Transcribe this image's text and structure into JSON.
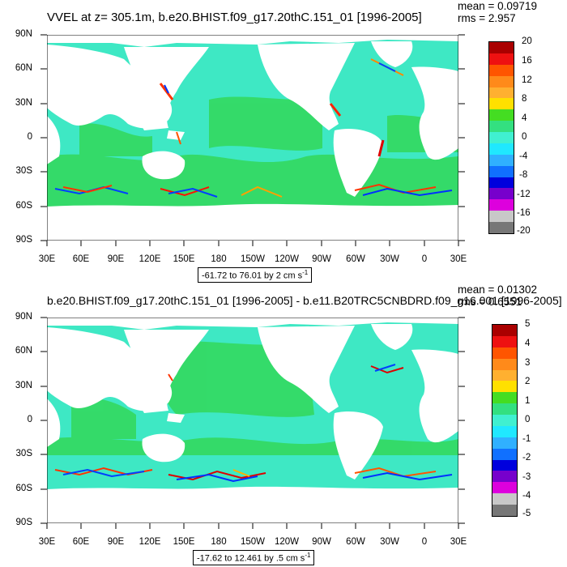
{
  "panels": [
    {
      "title": "VVEL at z= 305.1m, b.e20.BHIST.f09_g17.20thC.151_01 [1996-2005]",
      "mean": "mean = 0.09719",
      "rms": "rms = 2.957",
      "range_label": "-61.72 to 76.01 by 2 cm s",
      "range_sup": "-1",
      "colorbar": [
        "20",
        "16",
        "12",
        "8",
        "4",
        "0",
        "-4",
        "-8",
        "-12",
        "-16",
        "-20"
      ]
    },
    {
      "title": "b.e20.BHIST.f09_g17.20thC.151_01 [1996-2005] - b.e11.B20TRC5CNBDRD.f09_g16.001 [1996-2005]",
      "mean": "mean = 0.01302",
      "rms": "rms = 0.6551",
      "range_label": "-17.62 to 12.461 by .5 cm s",
      "range_sup": "-1",
      "colorbar": [
        "5",
        "4",
        "3",
        "2",
        "1",
        "0",
        "-1",
        "-2",
        "-3",
        "-4",
        "-5"
      ]
    }
  ],
  "lat_labels": [
    "90N",
    "60N",
    "30N",
    "0",
    "30S",
    "60S",
    "90S"
  ],
  "lon_labels": [
    "30E",
    "60E",
    "90E",
    "120E",
    "150E",
    "180",
    "150W",
    "120W",
    "90W",
    "60W",
    "30W",
    "0",
    "30E"
  ],
  "colors": {
    "ocean_main": "#3ee8c4",
    "ocean_alt": "#33d85a",
    "land": "#ffffff",
    "colorbar": [
      "#aa0000",
      "#ee1111",
      "#ff5500",
      "#ff8a1a",
      "#ffb030",
      "#ffe000",
      "#44dd22",
      "#33e080",
      "#40f0d0",
      "#20e8ff",
      "#30b0ff",
      "#1070ff",
      "#0000dd",
      "#7700cc",
      "#dd00dd",
      "#c8c8c8",
      "#777777"
    ]
  }
}
